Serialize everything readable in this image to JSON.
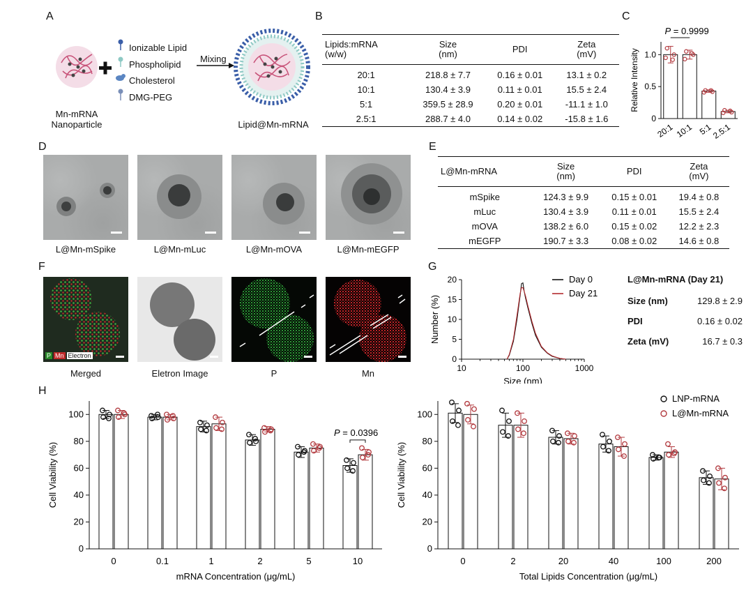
{
  "panels": {
    "A": "A",
    "B": "B",
    "C": "C",
    "D": "D",
    "E": "E",
    "F": "F",
    "G": "G",
    "H": "H"
  },
  "panelA": {
    "left_label_1": "Mn-mRNA",
    "left_label_2": "Nanoparticle",
    "plus": "+",
    "legend": [
      "Ionizable Lipid",
      "Phospholipid",
      "Cholesterol",
      "DMG-PEG"
    ],
    "arrow_label": "Mixing",
    "right_label": "Lipid@Mn-mRNA",
    "colors": {
      "ionizable": "#3a5ea8",
      "phospholipid": "#8ec9c4",
      "cholesterol": "#5b86c2",
      "peg": "#7a8fb8",
      "mrna": "#c8547a"
    }
  },
  "tableB": {
    "headers": [
      [
        "Lipids:mRNA",
        "(w/w)"
      ],
      [
        "Size",
        "(nm)"
      ],
      [
        "PDI",
        ""
      ],
      [
        "Zeta",
        "(mV)"
      ]
    ],
    "rows": [
      [
        "20:1",
        "218.8 ± 7.7",
        "0.16 ± 0.01",
        "13.1 ± 0.2"
      ],
      [
        "10:1",
        "130.4 ± 3.9",
        "0.11 ± 0.01",
        "15.5 ± 2.4"
      ],
      [
        "5:1",
        "359.5 ± 28.9",
        "0.20 ± 0.01",
        "-11.1 ± 1.0"
      ],
      [
        "2.5:1",
        "288.7 ± 4.0",
        "0.14 ± 0.02",
        "-15.8 ± 1.6"
      ]
    ]
  },
  "tableE": {
    "headers": [
      [
        "L@Mn-mRNA",
        ""
      ],
      [
        "Size",
        "(nm)"
      ],
      [
        "PDI",
        ""
      ],
      [
        "Zeta",
        "(mV)"
      ]
    ],
    "rows": [
      [
        "mSpike",
        "124.3 ± 9.9",
        "0.15 ± 0.01",
        "19.4 ± 0.8"
      ],
      [
        "mLuc",
        "130.4 ± 3.9",
        "0.11 ± 0.01",
        "15.5 ± 2.4"
      ],
      [
        "mOVA",
        "138.2 ± 6.0",
        "0.15 ± 0.02",
        "12.2 ± 2.3"
      ],
      [
        "mEGFP",
        "190.7 ± 3.3",
        "0.08 ± 0.02",
        "14.6 ± 0.8"
      ]
    ]
  },
  "panelD": {
    "captions": [
      "L@Mn-mSpike",
      "L@Mn-mLuc",
      "L@Mn-mOVA",
      "L@Mn-mEGFP"
    ]
  },
  "panelF": {
    "captions": [
      "Merged",
      "Eletron Image",
      "P",
      "Mn"
    ],
    "legend": [
      "P",
      "Mn",
      "Electron"
    ]
  },
  "panelG": {
    "title": "L@Mn-mRNA (Day 21)",
    "stats": [
      {
        "k": "Size (nm)",
        "v": "129.8 ± 2.9"
      },
      {
        "k": "PDI",
        "v": "0.16 ± 0.02"
      },
      {
        "k": "Zeta (mV)",
        "v": "16.7 ± 0.3"
      }
    ]
  },
  "chart_data": [
    {
      "id": "C",
      "type": "bar",
      "title": "",
      "ylabel": "Relative Intensity",
      "categories": [
        "20:1",
        "10:1",
        "5:1",
        "2.5:1"
      ],
      "values": [
        1.0,
        1.0,
        0.43,
        0.11
      ],
      "errors": [
        0.13,
        0.07,
        0.02,
        0.02
      ],
      "points": [
        [
          1.1,
          1.0,
          0.95,
          0.92
        ],
        [
          1.05,
          1.0,
          0.93,
          1.02
        ],
        [
          0.44,
          0.42,
          0.41,
          0.44
        ],
        [
          0.13,
          0.1,
          0.09,
          0.12
        ]
      ],
      "ylim": [
        0,
        1.2
      ],
      "yticks": [
        "0",
        "0.5",
        "1.0"
      ],
      "annotation": {
        "pre": "P",
        "text": " = 0.9999"
      },
      "color": "#b23a3f"
    },
    {
      "id": "G",
      "type": "line",
      "xlabel": "Size (nm)",
      "ylabel": "Number (%)",
      "xscale": "log",
      "xlim": [
        10,
        1000
      ],
      "ylim": [
        0,
        20
      ],
      "xticks": [
        "10",
        "100",
        "1000"
      ],
      "yticks": [
        "0",
        "5",
        "10",
        "15",
        "20"
      ],
      "series": [
        {
          "name": "Day 0",
          "color": "#111111",
          "x": [
            55,
            60,
            70,
            80,
            90,
            95,
            100,
            105,
            110,
            120,
            140,
            160,
            200,
            250,
            300,
            400,
            500
          ],
          "y": [
            0,
            1,
            4.5,
            10,
            16,
            19,
            19.2,
            17,
            15.5,
            13,
            9,
            6,
            3,
            1.5,
            0.7,
            0.2,
            0
          ]
        },
        {
          "name": "Day 21",
          "color": "#b22a2e",
          "x": [
            55,
            60,
            70,
            80,
            90,
            95,
            100,
            105,
            110,
            120,
            140,
            160,
            200,
            250,
            300,
            400,
            500
          ],
          "y": [
            0,
            1.2,
            5,
            11,
            16.5,
            18,
            18,
            17,
            16,
            13.5,
            9.5,
            6.5,
            3.2,
            1.6,
            0.8,
            0.2,
            0
          ]
        }
      ]
    },
    {
      "id": "H1",
      "type": "bar",
      "xlabel": "mRNA Concentration (μg/mL)",
      "ylabel": "Cell Viability (%)",
      "categories": [
        "0",
        "0.1",
        "1",
        "2",
        "5",
        "10"
      ],
      "ylim": [
        0,
        110
      ],
      "yticks": [
        "0",
        "20",
        "40",
        "60",
        "80",
        "100"
      ],
      "series": [
        {
          "name": "LNP-mRNA",
          "color": "#111111",
          "values": [
            100,
            98,
            91,
            81,
            72,
            62
          ],
          "errors": [
            3,
            2,
            4,
            4,
            4,
            5
          ],
          "points": [
            [
              103,
              100,
              98,
              97
            ],
            [
              99,
              98,
              97,
              100
            ],
            [
              94,
              92,
              89,
              88
            ],
            [
              85,
              80,
              79,
              82
            ],
            [
              76,
              73,
              70,
              72
            ],
            [
              66,
              64,
              60,
              58
            ]
          ]
        },
        {
          "name": "L@Mn-mRNA",
          "color": "#b23a3f",
          "values": [
            100,
            98,
            93,
            89,
            75,
            70
          ],
          "errors": [
            3,
            2,
            5,
            2,
            3,
            4
          ],
          "points": [
            [
              103,
              100,
              98,
              101
            ],
            [
              100,
              97,
              96,
              99
            ],
            [
              98,
              94,
              90,
              89
            ],
            [
              90,
              89,
              87,
              88
            ],
            [
              78,
              76,
              73,
              75
            ],
            [
              75,
              72,
              68,
              70
            ]
          ]
        }
      ],
      "annotation": {
        "pre": "P",
        "text": " = 0.0396",
        "category": "10"
      }
    },
    {
      "id": "H2",
      "type": "bar",
      "xlabel": "Total Lipids Concentration (μg/mL)",
      "ylabel": "Cell Viability (%)",
      "categories": [
        "0",
        "2",
        "20",
        "40",
        "100",
        "200"
      ],
      "ylim": [
        0,
        110
      ],
      "yticks": [
        "0",
        "20",
        "40",
        "60",
        "80",
        "100"
      ],
      "series": [
        {
          "name": "LNP-mRNA",
          "color": "#111111",
          "values": [
            101,
            92,
            83,
            78,
            68,
            53
          ],
          "errors": [
            7,
            9,
            5,
            6,
            2,
            5
          ],
          "points": [
            [
              109,
              103,
              95,
              92
            ],
            [
              103,
              95,
              87,
              84
            ],
            [
              88,
              84,
              80,
              79
            ],
            [
              85,
              80,
              76,
              73
            ],
            [
              70,
              68,
              67,
              68
            ],
            [
              58,
              54,
              51,
              49
            ]
          ]
        },
        {
          "name": "L@Mn-mRNA",
          "color": "#b23a3f",
          "values": [
            100,
            92,
            82,
            76,
            72,
            52
          ],
          "errors": [
            7,
            9,
            4,
            7,
            4,
            8
          ],
          "points": [
            [
              108,
              104,
              96,
              91
            ],
            [
              101,
              95,
              89,
              86
            ],
            [
              86,
              84,
              80,
              79
            ],
            [
              83,
              78,
              74,
              69
            ],
            [
              78,
              72,
              70,
              71
            ],
            [
              60,
              53,
              49,
              45
            ]
          ]
        }
      ],
      "legend": [
        "LNP-mRNA",
        "L@Mn-mRNA"
      ]
    }
  ]
}
